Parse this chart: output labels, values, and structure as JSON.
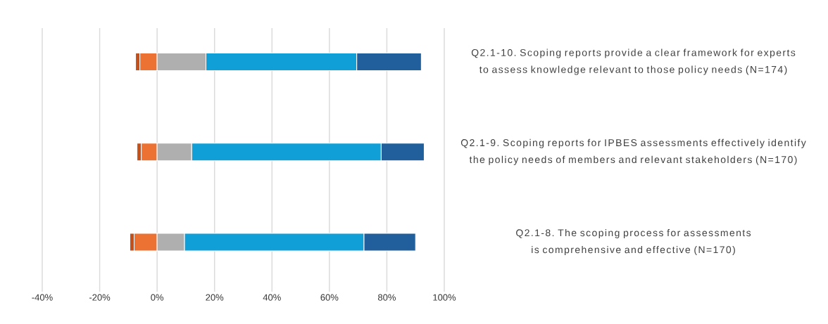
{
  "chart_data": {
    "type": "bar",
    "orientation": "horizontal",
    "stacked": true,
    "grid": "x",
    "categories": [
      "Q2.1-10. Scoping reports provide a clear framework for experts to assess knowledge relevant to those policy needs (N=174)",
      "Q2.1-9. Scoping reports for IPBES assessments effectively identify the policy needs of members and relevant stakeholders (N=170)",
      "Q2.1-8. The scoping process for assessments is comprehensive and effective (N=170)"
    ],
    "series": [
      {
        "color": "#eb7232",
        "values": [
          -6,
          -5.5,
          -8
        ]
      },
      {
        "color": "#c4501b",
        "values": [
          -1.5,
          -1.5,
          -1.5
        ]
      },
      {
        "color": "#afafaf",
        "values": [
          17,
          12,
          9.5
        ]
      },
      {
        "color": "#109fd6",
        "values": [
          52.5,
          66,
          62.5
        ]
      },
      {
        "color": "#205f9b",
        "values": [
          22.5,
          15,
          18
        ]
      }
    ],
    "xlim": [
      -40,
      100
    ],
    "xticks": [
      {
        "value": -40,
        "label": "-40%"
      },
      {
        "value": -20,
        "label": "-20%"
      },
      {
        "value": 0,
        "label": "0%"
      },
      {
        "value": 20,
        "label": "20%"
      },
      {
        "value": 40,
        "label": "40%"
      },
      {
        "value": 60,
        "label": "60%"
      },
      {
        "value": 80,
        "label": "80%"
      },
      {
        "value": 100,
        "label": "100%"
      }
    ]
  }
}
